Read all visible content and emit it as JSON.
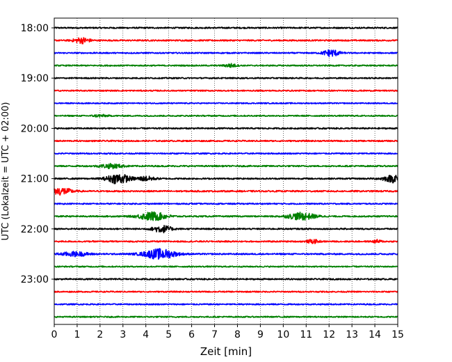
{
  "chart_data": {
    "type": "line",
    "xlabel": "Zeit  [min]",
    "ylabel": "UTC (Lokalzeit = UTC + 02:00)",
    "xlim": [
      0,
      15
    ],
    "x_ticks": [
      "0",
      "1",
      "2",
      "3",
      "4",
      "5",
      "6",
      "7",
      "8",
      "9",
      "10",
      "11",
      "12",
      "13",
      "14",
      "15"
    ],
    "x_grid": "dotted vertical lines at every minute",
    "row_interval_min": 15,
    "y_ticks": [
      {
        "label": "18:00",
        "row": 0
      },
      {
        "label": "19:00",
        "row": 4
      },
      {
        "label": "20:00",
        "row": 8
      },
      {
        "label": "21:00",
        "row": 12
      },
      {
        "label": "22:00",
        "row": 16
      },
      {
        "label": "23:00",
        "row": 20
      }
    ],
    "color_cycle": [
      "#000000",
      "#ff0000",
      "#0000ff",
      "#008000"
    ],
    "rows": [
      {
        "start": "18:00",
        "amp": 1.0,
        "events": []
      },
      {
        "start": "18:15",
        "amp": 1.0,
        "events": [
          {
            "t": 1.2,
            "w": 0.35,
            "a": 4
          }
        ]
      },
      {
        "start": "18:30",
        "amp": 0.9,
        "events": [
          {
            "t": 12.1,
            "w": 0.35,
            "a": 5
          }
        ]
      },
      {
        "start": "18:45",
        "amp": 0.9,
        "events": [
          {
            "t": 7.7,
            "w": 0.25,
            "a": 2.5
          }
        ]
      },
      {
        "start": "19:00",
        "amp": 0.9,
        "events": []
      },
      {
        "start": "19:15",
        "amp": 0.9,
        "events": []
      },
      {
        "start": "19:30",
        "amp": 0.8,
        "events": []
      },
      {
        "start": "19:45",
        "amp": 0.9,
        "events": [
          {
            "t": 2.0,
            "w": 0.3,
            "a": 1.6
          }
        ]
      },
      {
        "start": "20:00",
        "amp": 1.0,
        "events": []
      },
      {
        "start": "20:15",
        "amp": 1.0,
        "events": []
      },
      {
        "start": "20:30",
        "amp": 0.9,
        "events": []
      },
      {
        "start": "20:45",
        "amp": 1.0,
        "events": [
          {
            "t": 2.5,
            "w": 0.5,
            "a": 3
          }
        ]
      },
      {
        "start": "21:00",
        "amp": 1.0,
        "events": [
          {
            "t": 2.8,
            "w": 0.5,
            "a": 7
          },
          {
            "t": 4.0,
            "w": 0.4,
            "a": 3
          },
          {
            "t": 15.0,
            "w": 0.6,
            "a": 6
          }
        ]
      },
      {
        "start": "21:15",
        "amp": 1.1,
        "events": [
          {
            "t": 0.3,
            "w": 0.45,
            "a": 5
          }
        ]
      },
      {
        "start": "21:30",
        "amp": 0.9,
        "events": []
      },
      {
        "start": "21:45",
        "amp": 1.0,
        "events": [
          {
            "t": 4.3,
            "w": 0.6,
            "a": 6
          },
          {
            "t": 10.8,
            "w": 0.6,
            "a": 5
          }
        ]
      },
      {
        "start": "22:00",
        "amp": 1.0,
        "events": [
          {
            "t": 4.7,
            "w": 0.4,
            "a": 5
          }
        ]
      },
      {
        "start": "22:15",
        "amp": 1.0,
        "events": [
          {
            "t": 11.3,
            "w": 0.25,
            "a": 2.5
          },
          {
            "t": 14.1,
            "w": 0.2,
            "a": 2
          }
        ]
      },
      {
        "start": "22:30",
        "amp": 1.0,
        "events": [
          {
            "t": 0.9,
            "w": 0.6,
            "a": 3
          },
          {
            "t": 4.6,
            "w": 0.7,
            "a": 7
          }
        ]
      },
      {
        "start": "22:45",
        "amp": 0.9,
        "events": []
      },
      {
        "start": "23:00",
        "amp": 1.0,
        "events": []
      },
      {
        "start": "23:15",
        "amp": 0.9,
        "events": []
      },
      {
        "start": "23:30",
        "amp": 0.9,
        "events": []
      },
      {
        "start": "23:45",
        "amp": 0.9,
        "events": []
      }
    ]
  }
}
